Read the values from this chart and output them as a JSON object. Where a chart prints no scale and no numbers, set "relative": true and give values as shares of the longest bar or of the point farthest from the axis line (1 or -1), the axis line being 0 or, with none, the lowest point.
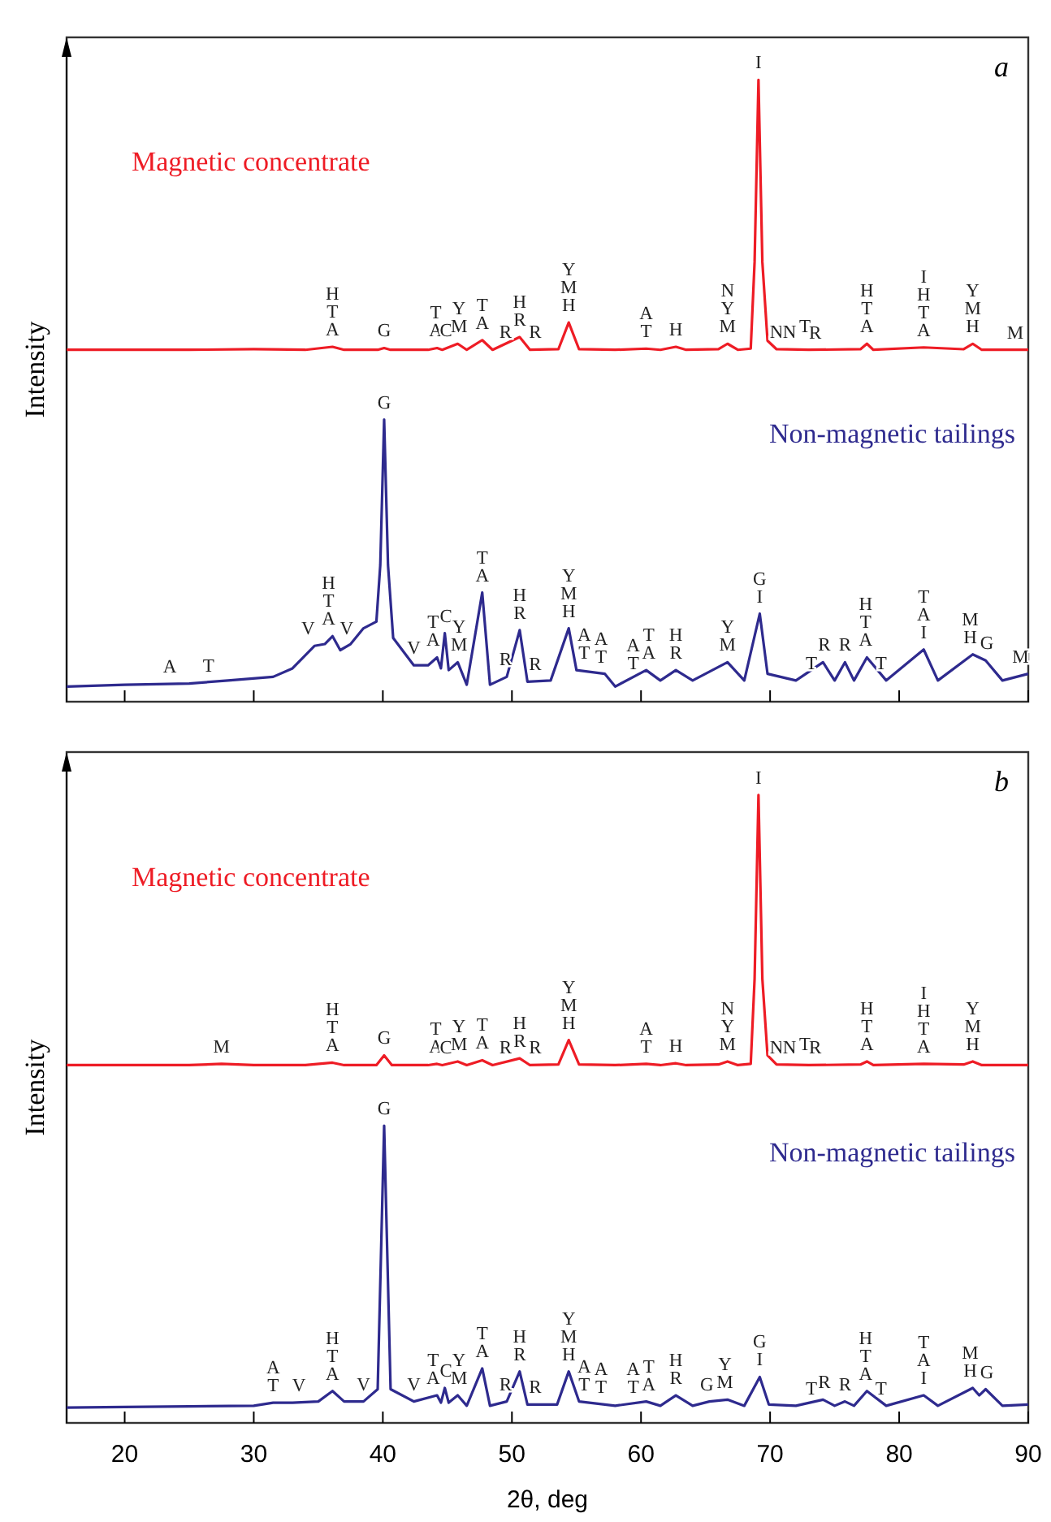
{
  "chart_data": [
    {
      "type": "line",
      "relative": true,
      "xlim": [
        15.5,
        90
      ],
      "xticks": [
        20,
        30,
        40,
        50,
        60,
        70,
        80,
        90
      ],
      "tick_labels": false,
      "ylabel": "Intensity",
      "grid": false,
      "legend": false,
      "marker": "none",
      "line_style": "solid",
      "series": [
        {
          "name": "Magnetic concentrate",
          "color": "#ee1c25",
          "x": [
            15.5,
            20,
            25,
            30,
            34,
            36.1,
            37,
            39.6,
            40.1,
            40.6,
            43.5,
            44.2,
            44.6,
            45.8,
            46.5,
            47.7,
            48.5,
            50.6,
            51.4,
            53.6,
            54.4,
            55.2,
            58,
            60.4,
            61.5,
            62.7,
            63.5,
            66,
            66.7,
            67.5,
            68.5,
            68.8,
            69.1,
            69.4,
            69.8,
            70.5,
            73,
            77,
            77.5,
            78,
            81.9,
            85,
            85.7,
            86.4,
            90
          ],
          "values": [
            0.555,
            0.555,
            0.555,
            0.556,
            0.555,
            0.56,
            0.555,
            0.555,
            0.558,
            0.555,
            0.555,
            0.558,
            0.555,
            0.565,
            0.555,
            0.571,
            0.555,
            0.576,
            0.555,
            0.556,
            0.6,
            0.556,
            0.555,
            0.557,
            0.555,
            0.56,
            0.555,
            0.556,
            0.565,
            0.555,
            0.557,
            0.7,
            1.0,
            0.7,
            0.57,
            0.556,
            0.555,
            0.556,
            0.565,
            0.555,
            0.559,
            0.556,
            0.565,
            0.555,
            0.555
          ]
        },
        {
          "name": "Non-magnetic tailings",
          "color": "#2e2a8e",
          "x": [
            15.5,
            20,
            25,
            28,
            31.5,
            33,
            34.7,
            35.5,
            36.1,
            36.7,
            37.5,
            38.5,
            39.5,
            39.8,
            40.1,
            40.4,
            40.8,
            42.4,
            43.5,
            44.2,
            44.5,
            44.8,
            45.1,
            45.8,
            46.5,
            47.7,
            48.3,
            49.6,
            50.6,
            51.2,
            53,
            54.4,
            55,
            57.2,
            58,
            60.4,
            61.5,
            62.7,
            64,
            66.7,
            68,
            69.2,
            69.8,
            72,
            74.1,
            75,
            75.8,
            76.5,
            77.5,
            79,
            81.9,
            83,
            85.7,
            86.7,
            88,
            90
          ],
          "values": [
            0,
            0.003,
            0.005,
            0.01,
            0.016,
            0.03,
            0.067,
            0.07,
            0.083,
            0.06,
            0.07,
            0.096,
            0.107,
            0.2,
            0.44,
            0.2,
            0.08,
            0.035,
            0.035,
            0.048,
            0.03,
            0.088,
            0.027,
            0.04,
            0.003,
            0.155,
            0.003,
            0.016,
            0.093,
            0.008,
            0.01,
            0.096,
            0.027,
            0.021,
            0,
            0.027,
            0.01,
            0.027,
            0.01,
            0.04,
            0.01,
            0.12,
            0.021,
            0.01,
            0.04,
            0.01,
            0.04,
            0.01,
            0.048,
            0.01,
            0.061,
            0.01,
            0.053,
            0.043,
            0.01,
            0.021
          ]
        }
      ],
      "annotations": [
        "a",
        {
          "text": "H\nT\nA",
          "x": 36.1,
          "y": 0.56
        },
        {
          "text": "G",
          "x": 40.1,
          "y": 0.558
        },
        {
          "text": "T\nA",
          "x": 44.1,
          "y": 0.558
        },
        {
          "text": "C",
          "x": 44.9,
          "y": 0.558
        },
        {
          "text": "Y\nM",
          "x": 45.9,
          "y": 0.565
        },
        {
          "text": "T\nA",
          "x": 47.7,
          "y": 0.571
        },
        {
          "text": "R",
          "x": 49.5,
          "y": 0.556
        },
        {
          "text": "H\nR",
          "x": 50.6,
          "y": 0.576
        },
        {
          "text": "R",
          "x": 51.8,
          "y": 0.556
        },
        {
          "text": "Y\nM\nH",
          "x": 54.4,
          "y": 0.6
        },
        {
          "text": "A\nT",
          "x": 60.4,
          "y": 0.557
        },
        {
          "text": "H",
          "x": 62.7,
          "y": 0.56
        },
        {
          "text": "N\nY\nM",
          "x": 66.7,
          "y": 0.565
        },
        {
          "text": "I",
          "x": 69.1,
          "y": 1.0
        },
        {
          "text": "N",
          "x": 70.5,
          "y": 0.556
        },
        {
          "text": "N",
          "x": 71.5,
          "y": 0.556
        },
        {
          "text": "T",
          "x": 72.7,
          "y": 0.565
        },
        {
          "text": "R",
          "x": 73.5,
          "y": 0.555
        },
        {
          "text": "H\nT\nA",
          "x": 77.5,
          "y": 0.565
        },
        {
          "text": "I\nH\nT\nA",
          "x": 81.9,
          "y": 0.559
        },
        {
          "text": "Y\nM\nH",
          "x": 85.7,
          "y": 0.565
        },
        {
          "text": "M",
          "x": 89,
          "y": 0.555
        },
        {
          "text": "A",
          "x": 23.5,
          "y": 0.005
        },
        {
          "text": "T",
          "x": 26.5,
          "y": 0.006
        },
        {
          "text": "V",
          "x": 34.2,
          "y": 0.067
        },
        {
          "text": "H\nT\nA",
          "x": 35.8,
          "y": 0.083
        },
        {
          "text": "V",
          "x": 37.2,
          "y": 0.067
        },
        {
          "text": "G",
          "x": 40.1,
          "y": 0.44
        },
        {
          "text": "V",
          "x": 42.4,
          "y": 0.035
        },
        {
          "text": "T\nA",
          "x": 43.9,
          "y": 0.048
        },
        {
          "text": "C",
          "x": 44.9,
          "y": 0.088
        },
        {
          "text": "Y\nM",
          "x": 45.9,
          "y": 0.04
        },
        {
          "text": "T\nA",
          "x": 47.7,
          "y": 0.155
        },
        {
          "text": "R",
          "x": 49.5,
          "y": 0.016
        },
        {
          "text": "H\nR",
          "x": 50.6,
          "y": 0.093
        },
        {
          "text": "R",
          "x": 51.8,
          "y": 0.008
        },
        {
          "text": "Y\nM\nH",
          "x": 54.4,
          "y": 0.096
        },
        {
          "text": "A\nT",
          "x": 55.6,
          "y": 0.027
        },
        {
          "text": "A\nT",
          "x": 56.9,
          "y": 0.021
        },
        {
          "text": "A\nT",
          "x": 59.4,
          "y": 0.01
        },
        {
          "text": "T\nA",
          "x": 60.6,
          "y": 0.027
        },
        {
          "text": "H\nR",
          "x": 62.7,
          "y": 0.027
        },
        {
          "text": "Y\nM",
          "x": 66.7,
          "y": 0.04
        },
        {
          "text": "G\nI",
          "x": 69.2,
          "y": 0.12
        },
        {
          "text": "T",
          "x": 73.2,
          "y": 0.01
        },
        {
          "text": "R",
          "x": 74.2,
          "y": 0.04
        },
        {
          "text": "R",
          "x": 75.8,
          "y": 0.04
        },
        {
          "text": "H\nT\nA",
          "x": 77.4,
          "y": 0.048
        },
        {
          "text": "T",
          "x": 78.6,
          "y": 0.01
        },
        {
          "text": "T\nA\nI",
          "x": 81.9,
          "y": 0.061
        },
        {
          "text": "M\nH",
          "x": 85.5,
          "y": 0.053
        },
        {
          "text": "G",
          "x": 86.8,
          "y": 0.043
        },
        {
          "text": "M",
          "x": 89.4,
          "y": 0.021
        }
      ]
    },
    {
      "type": "line",
      "relative": true,
      "xlim": [
        15.5,
        90
      ],
      "xticks": [
        20,
        30,
        40,
        50,
        60,
        70,
        80,
        90
      ],
      "tick_labels": "x",
      "xlabel": "2θ, deg",
      "ylabel": "Intensity",
      "grid": false,
      "legend": false,
      "marker": "none",
      "line_style": "solid",
      "series": [
        {
          "name": "Magnetic concentrate",
          "color": "#ee1c25",
          "x": [
            15.5,
            20,
            25,
            27.5,
            30,
            34,
            36.1,
            37,
            39.5,
            40.1,
            40.7,
            43.5,
            44.2,
            44.6,
            45.8,
            46.5,
            47.7,
            48.5,
            50.6,
            51.4,
            53.6,
            54.4,
            55.2,
            58,
            60.4,
            61.5,
            62.7,
            63.5,
            66,
            66.7,
            67.5,
            68.5,
            68.8,
            69.1,
            69.4,
            69.8,
            70.5,
            73,
            77,
            77.5,
            78,
            81.9,
            85,
            85.7,
            86.4,
            90
          ],
          "values": [
            0.559,
            0.559,
            0.559,
            0.561,
            0.559,
            0.559,
            0.563,
            0.559,
            0.559,
            0.575,
            0.559,
            0.559,
            0.561,
            0.559,
            0.565,
            0.559,
            0.567,
            0.559,
            0.57,
            0.559,
            0.56,
            0.6,
            0.56,
            0.559,
            0.561,
            0.559,
            0.562,
            0.559,
            0.56,
            0.565,
            0.559,
            0.561,
            0.7,
            1.0,
            0.7,
            0.575,
            0.56,
            0.559,
            0.56,
            0.565,
            0.559,
            0.561,
            0.56,
            0.565,
            0.559,
            0.559
          ]
        },
        {
          "name": "Non-magnetic tailings",
          "color": "#2e2a8e",
          "x": [
            15.5,
            20,
            25,
            30,
            31.5,
            33,
            35,
            36.1,
            37,
            38.5,
            39.6,
            40.1,
            40.6,
            42.4,
            44.2,
            44.5,
            44.8,
            45.1,
            45.8,
            46.5,
            47.7,
            48.3,
            49.6,
            50.6,
            51.2,
            53.5,
            54.4,
            55.2,
            58,
            60.4,
            61.5,
            62.7,
            64,
            65.3,
            66.7,
            68,
            69.2,
            69.9,
            72,
            74.1,
            75,
            75.8,
            76.5,
            77.5,
            79,
            81.9,
            83,
            85.7,
            86.2,
            86.7,
            88,
            90
          ],
          "values": [
            0,
            0.001,
            0.002,
            0.003,
            0.008,
            0.008,
            0.01,
            0.027,
            0.01,
            0.01,
            0.03,
            0.46,
            0.03,
            0.01,
            0.02,
            0.008,
            0.032,
            0.008,
            0.02,
            0.003,
            0.064,
            0.003,
            0.01,
            0.059,
            0.005,
            0.005,
            0.059,
            0.01,
            0.003,
            0.01,
            0.003,
            0.02,
            0.003,
            0.01,
            0.013,
            0.003,
            0.05,
            0.005,
            0.003,
            0.013,
            0.003,
            0.01,
            0.003,
            0.027,
            0.003,
            0.02,
            0.003,
            0.032,
            0.02,
            0.03,
            0.003,
            0.005
          ]
        }
      ],
      "annotations": [
        "b",
        {
          "text": "M",
          "x": 27.5,
          "y": 0.561
        },
        {
          "text": "H\nT\nA",
          "x": 36.1,
          "y": 0.563
        },
        {
          "text": "G",
          "x": 40.1,
          "y": 0.575
        },
        {
          "text": "T\nA",
          "x": 44.1,
          "y": 0.561
        },
        {
          "text": "C",
          "x": 44.9,
          "y": 0.559
        },
        {
          "text": "Y\nM",
          "x": 45.9,
          "y": 0.565
        },
        {
          "text": "T\nA",
          "x": 47.7,
          "y": 0.567
        },
        {
          "text": "R",
          "x": 49.5,
          "y": 0.559
        },
        {
          "text": "H\nR",
          "x": 50.6,
          "y": 0.57
        },
        {
          "text": "R",
          "x": 51.8,
          "y": 0.559
        },
        {
          "text": "Y\nM\nH",
          "x": 54.4,
          "y": 0.6
        },
        {
          "text": "A\nT",
          "x": 60.4,
          "y": 0.561
        },
        {
          "text": "H",
          "x": 62.7,
          "y": 0.562
        },
        {
          "text": "N\nY\nM",
          "x": 66.7,
          "y": 0.565
        },
        {
          "text": "I",
          "x": 69.1,
          "y": 1.0
        },
        {
          "text": "N",
          "x": 70.5,
          "y": 0.56
        },
        {
          "text": "N",
          "x": 71.5,
          "y": 0.56
        },
        {
          "text": "T",
          "x": 72.7,
          "y": 0.565
        },
        {
          "text": "R",
          "x": 73.5,
          "y": 0.559
        },
        {
          "text": "H\nT\nA",
          "x": 77.5,
          "y": 0.565
        },
        {
          "text": "I\nH\nT\nA",
          "x": 81.9,
          "y": 0.561
        },
        {
          "text": "Y\nM\nH",
          "x": 85.7,
          "y": 0.565
        },
        {
          "text": "A\nT",
          "x": 31.5,
          "y": 0.008
        },
        {
          "text": "V",
          "x": 33.5,
          "y": 0.008
        },
        {
          "text": "H\nT\nA",
          "x": 36.1,
          "y": 0.027
        },
        {
          "text": "V",
          "x": 38.5,
          "y": 0.01
        },
        {
          "text": "G",
          "x": 40.1,
          "y": 0.46
        },
        {
          "text": "V",
          "x": 42.4,
          "y": 0.01
        },
        {
          "text": "T\nA",
          "x": 43.9,
          "y": 0.02
        },
        {
          "text": "C",
          "x": 44.9,
          "y": 0.032
        },
        {
          "text": "Y\nM",
          "x": 45.9,
          "y": 0.02
        },
        {
          "text": "T\nA",
          "x": 47.7,
          "y": 0.064
        },
        {
          "text": "R",
          "x": 49.5,
          "y": 0.01
        },
        {
          "text": "H\nR",
          "x": 50.6,
          "y": 0.059
        },
        {
          "text": "R",
          "x": 51.8,
          "y": 0.005
        },
        {
          "text": "Y\nM\nH",
          "x": 54.4,
          "y": 0.059
        },
        {
          "text": "A\nT",
          "x": 55.6,
          "y": 0.01
        },
        {
          "text": "A\nT",
          "x": 56.9,
          "y": 0.005
        },
        {
          "text": "A\nT",
          "x": 59.4,
          "y": 0.005
        },
        {
          "text": "T\nA",
          "x": 60.6,
          "y": 0.01
        },
        {
          "text": "H\nR",
          "x": 62.7,
          "y": 0.02
        },
        {
          "text": "G",
          "x": 65.1,
          "y": 0.01
        },
        {
          "text": "Y\nM",
          "x": 66.5,
          "y": 0.013
        },
        {
          "text": "G\nI",
          "x": 69.2,
          "y": 0.05
        },
        {
          "text": "T",
          "x": 73.2,
          "y": 0.003
        },
        {
          "text": "R",
          "x": 74.2,
          "y": 0.013
        },
        {
          "text": "R",
          "x": 75.8,
          "y": 0.01
        },
        {
          "text": "H\nT\nA",
          "x": 77.4,
          "y": 0.027
        },
        {
          "text": "T",
          "x": 78.6,
          "y": 0.003
        },
        {
          "text": "T\nA\nI",
          "x": 81.9,
          "y": 0.02
        },
        {
          "text": "M\nH",
          "x": 85.5,
          "y": 0.032
        },
        {
          "text": "G",
          "x": 86.8,
          "y": 0.03
        }
      ]
    }
  ]
}
